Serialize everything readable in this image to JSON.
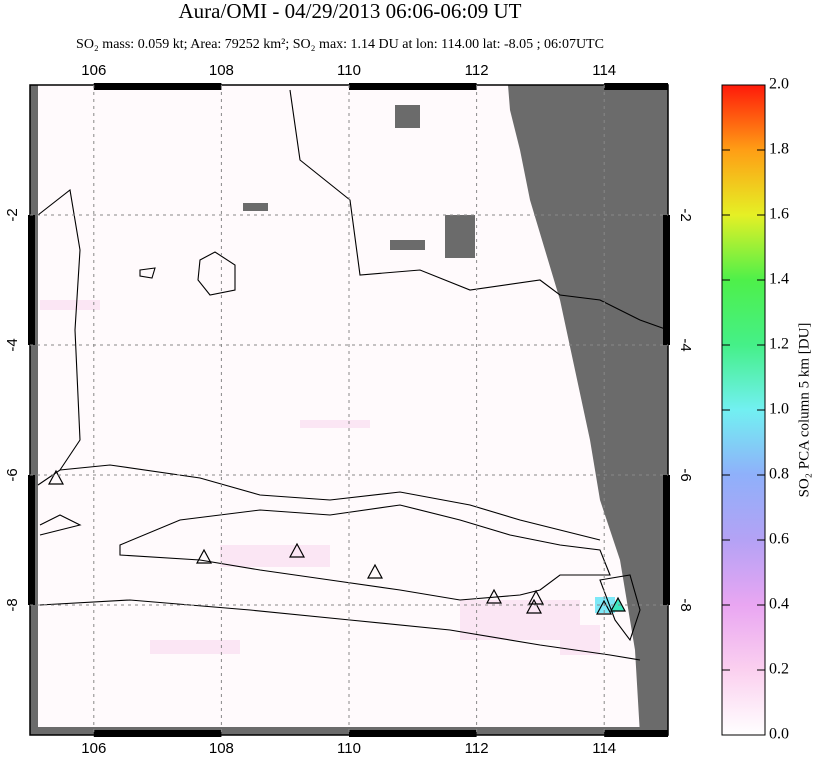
{
  "map": {
    "title": "Aura/OMI - 04/29/2013 06:06-06:09 UT",
    "subtitle": "SO₂ mass: 0.059 kt; Area: 79252 km²; SO₂ max: 1.14 DU at lon: 114.00 lat: -8.05 ; 06:07UTC",
    "lonlim": [
      105,
      115
    ],
    "latlim": [
      -10,
      0
    ],
    "lon_ticks": [
      106,
      108,
      110,
      112,
      114
    ],
    "lat_ticks": [
      -2,
      -4,
      -6,
      -8
    ]
  },
  "colorbar": {
    "label": "SO₂ PCA column 5 km [DU]",
    "lim": [
      0,
      2
    ],
    "ticks": [
      {
        "value": 0,
        "label": "0.0"
      },
      {
        "value": 0.2,
        "label": "0.2"
      },
      {
        "value": 0.4,
        "label": "0.4"
      },
      {
        "value": 0.6,
        "label": "0.6"
      },
      {
        "value": 0.8,
        "label": "0.8"
      },
      {
        "value": 1,
        "label": "1.0"
      },
      {
        "value": 1.2,
        "label": "1.2"
      },
      {
        "value": 1.4,
        "label": "1.4"
      },
      {
        "value": 1.6,
        "label": "1.6"
      },
      {
        "value": 1.8,
        "label": "1.8"
      },
      {
        "value": 2,
        "label": "2.0"
      }
    ]
  }
}
